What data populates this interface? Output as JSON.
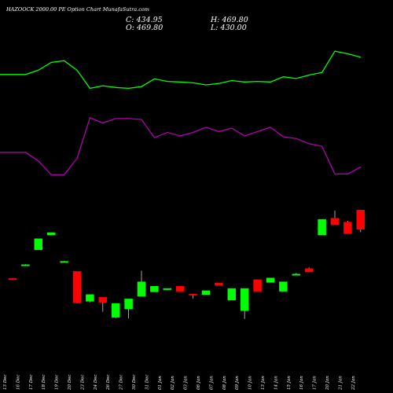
{
  "header": {
    "title": "HAZOOCK 2000.00  PE Option  Chart MunafaSutra.com",
    "close": "C: 434.95",
    "open": "O: 469.80",
    "high": "H: 469.80",
    "low": "L: 430.00"
  },
  "colors": {
    "background": "#000000",
    "up": "#00ff00",
    "down": "#ff0000",
    "upper_band": "#00ff00",
    "lower_band": "#b000b0"
  },
  "chart_data": {
    "type": "candlestick",
    "categories": [
      "13 Dec",
      "16 Dec",
      "17 Dec",
      "18 Dec",
      "19 Dec",
      "20 Dec",
      "23 Dec",
      "24 Dec",
      "26 Dec",
      "27 Dec",
      "30 Dec",
      "31 Dec",
      "01 Jan",
      "02 Jan",
      "03 Jan",
      "06 Jan",
      "07 Jan",
      "08 Jan",
      "09 Jan",
      "10 Jan",
      "13 Jan",
      "14 Jan",
      "15 Jan",
      "16 Jan",
      "17 Jan",
      "20 Jan",
      "21 Jan",
      "22 Jan"
    ],
    "candles": [
      {
        "open": 346,
        "high": 346,
        "low": 344,
        "close": 345
      },
      {
        "open": 371,
        "high": 372,
        "low": 370,
        "close": 371
      },
      {
        "open": 398,
        "high": 418,
        "low": 398,
        "close": 418
      },
      {
        "open": 425,
        "high": 429,
        "low": 425,
        "close": 429
      },
      {
        "open": 377,
        "high": 378,
        "low": 376,
        "close": 377
      },
      {
        "open": 359,
        "high": 359,
        "low": 301,
        "close": 302
      },
      {
        "open": 305,
        "high": 317,
        "low": 303,
        "close": 317
      },
      {
        "open": 312,
        "high": 312,
        "low": 286,
        "close": 303
      },
      {
        "open": 276,
        "high": 301,
        "low": 274,
        "close": 301
      },
      {
        "open": 291,
        "high": 309,
        "low": 274,
        "close": 309
      },
      {
        "open": 314,
        "high": 360,
        "low": 314,
        "close": 340
      },
      {
        "open": 322,
        "high": 332,
        "low": 322,
        "close": 332
      },
      {
        "open": 326,
        "high": 328,
        "low": 325,
        "close": 328
      },
      {
        "open": 332,
        "high": 332,
        "low": 323,
        "close": 323
      },
      {
        "open": 318,
        "high": 318,
        "low": 310,
        "close": 316
      },
      {
        "open": 317,
        "high": 324,
        "low": 317,
        "close": 324
      },
      {
        "open": 338,
        "high": 338,
        "low": 334,
        "close": 334
      },
      {
        "open": 307,
        "high": 328,
        "low": 307,
        "close": 328
      },
      {
        "open": 288,
        "high": 328,
        "low": 273,
        "close": 328
      },
      {
        "open": 344,
        "high": 344,
        "low": 323,
        "close": 323
      },
      {
        "open": 339,
        "high": 347,
        "low": 339,
        "close": 347
      },
      {
        "open": 323,
        "high": 340,
        "low": 323,
        "close": 340
      },
      {
        "open": 354,
        "high": 356,
        "low": 352,
        "close": 354
      },
      {
        "open": 364,
        "high": 366,
        "low": 357,
        "close": 358
      },
      {
        "open": 425,
        "high": 453,
        "low": 425,
        "close": 453
      },
      {
        "open": 455,
        "high": 469,
        "low": 443,
        "close": 443
      },
      {
        "open": 448,
        "high": 450,
        "low": 427,
        "close": 427
      },
      {
        "open": 469.8,
        "high": 469.8,
        "low": 430,
        "close": 434.95
      }
    ],
    "upper_band": [
      960,
      960,
      985,
      1030,
      1040,
      985,
      880,
      895,
      885,
      880,
      890,
      935,
      920,
      917,
      912,
      900,
      908,
      925,
      917,
      920,
      917,
      947,
      937,
      957,
      972,
      1095,
      1080,
      1060
    ],
    "lower_band": [
      510,
      510,
      460,
      380,
      380,
      475,
      710,
      680,
      705,
      705,
      700,
      595,
      625,
      605,
      625,
      655,
      630,
      650,
      605,
      630,
      655,
      600,
      590,
      560,
      545,
      385,
      385,
      425
    ],
    "price_range": [
      230,
      500
    ],
    "band_range": [
      0,
      1300
    ]
  }
}
